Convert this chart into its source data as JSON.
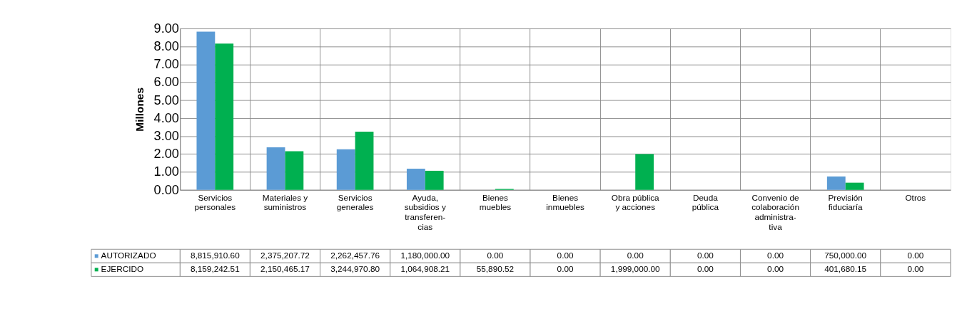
{
  "chart_data": {
    "type": "bar",
    "ylabel": "Millones",
    "categories": [
      "Servicios\npersonales",
      "Materiales y\nsuministros",
      "Servicios\ngenerales",
      "Ayuda,\nsubsidios y\ntransferen-\ncias",
      "Bienes\nmuebles",
      "Bienes\ninmuebles",
      "Obra pública\ny acciones",
      "Deuda\npública",
      "Convenio de\ncolaboración\nadministra-\ntiva",
      "Previsión\nfiduciaría",
      "Otros"
    ],
    "series": [
      {
        "name": "AUTORIZADO",
        "color": "#5b9bd5",
        "values": [
          8.8159106,
          2.37520772,
          2.26245776,
          1.18,
          0,
          0,
          0,
          0,
          0,
          0.75,
          0
        ]
      },
      {
        "name": "EJERCIDO",
        "color": "#00b050",
        "values": [
          8.15924251,
          2.15046517,
          3.2449708,
          1.06490821,
          0.05589052,
          0,
          1.999,
          0,
          0,
          0.40168015,
          0
        ]
      }
    ],
    "annotations": [
      "8,815,910.60",
      "2,375,207.72",
      "2,262,457.76",
      "1,180,000.00",
      "0.00",
      "0.00",
      "0.00",
      "0.00",
      "0.00",
      "750,000.00",
      "0.00",
      "8,159,242.51",
      "2,150,465.17",
      "3,244,970.80",
      "1,064,908.21",
      "55,890.52",
      "0.00",
      "1,999,000.00",
      "0.00",
      "0.00",
      "401,680.15",
      "0.00"
    ],
    "ylim": [
      0,
      9
    ],
    "yticks": [
      {
        "value": 0,
        "label": "0.00"
      },
      {
        "value": 1,
        "label": "1.00"
      },
      {
        "value": 2,
        "label": "2.00"
      },
      {
        "value": 3,
        "label": "3.00"
      },
      {
        "value": 4,
        "label": "4.00"
      },
      {
        "value": 5,
        "label": "5.00"
      },
      {
        "value": 6,
        "label": "6.00"
      },
      {
        "value": 7,
        "label": "7.00"
      },
      {
        "value": 8,
        "label": "8.00"
      },
      {
        "value": 9,
        "label": "9.00"
      }
    ],
    "grid": "y",
    "legend": "bottom left"
  }
}
